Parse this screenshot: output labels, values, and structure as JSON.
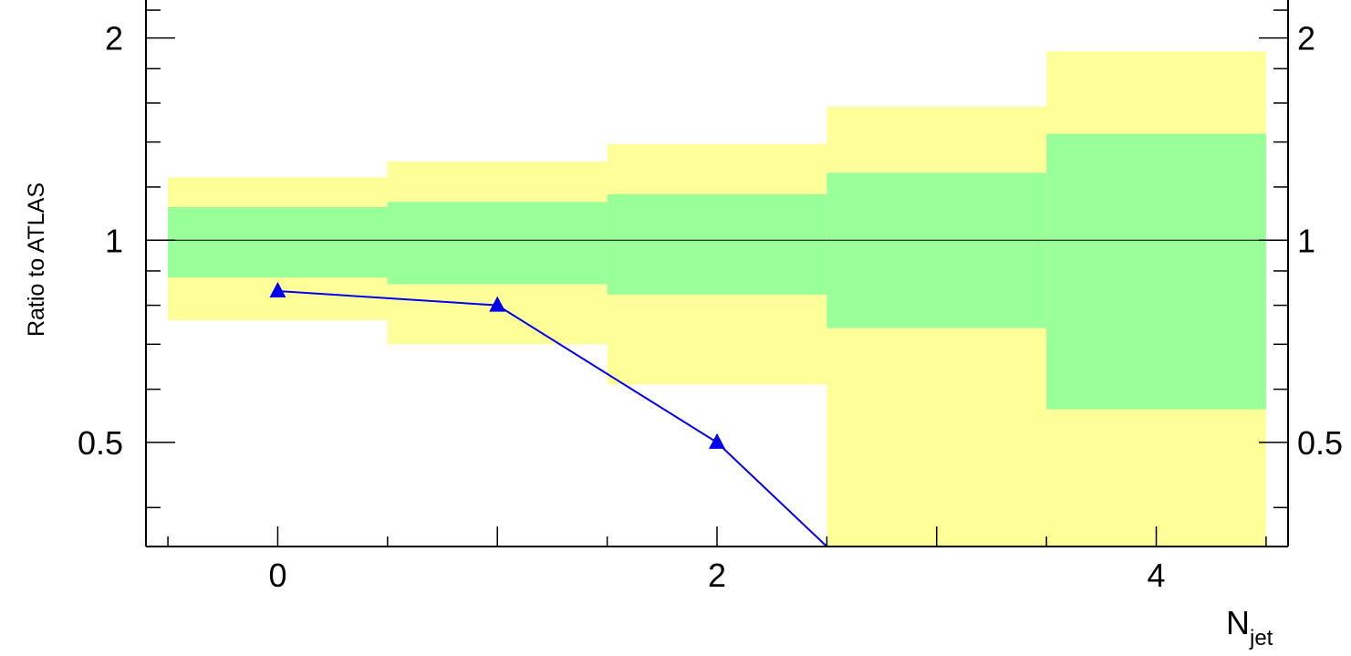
{
  "chart_data": {
    "type": "bar",
    "xlabel_main": "N",
    "xlabel_sub": "jet",
    "ylabel": "Ratio to ATLAS",
    "xlim": [
      -0.6,
      4.6
    ],
    "ylim": [
      0.35,
      2.35
    ],
    "y_scale": "log",
    "x_ticks": [
      "0",
      "2",
      "4"
    ],
    "y_ticks": [
      "0.5",
      "1",
      "2"
    ],
    "reference_line": 1,
    "bins": [
      {
        "low": -0.5,
        "high": 0.5,
        "green": [
          0.88,
          1.12
        ],
        "yellow": [
          0.76,
          1.24
        ]
      },
      {
        "low": 0.5,
        "high": 1.5,
        "green": [
          0.86,
          1.14
        ],
        "yellow": [
          0.7,
          1.31
        ]
      },
      {
        "low": 1.5,
        "high": 2.5,
        "green": [
          0.83,
          1.17
        ],
        "yellow": [
          0.61,
          1.39
        ]
      },
      {
        "low": 2.5,
        "high": 3.5,
        "green": [
          0.74,
          1.26
        ],
        "yellow": [
          0.35,
          1.58
        ]
      },
      {
        "low": 3.5,
        "high": 4.5,
        "green": [
          0.56,
          1.44
        ],
        "yellow": [
          0.35,
          1.91
        ]
      }
    ],
    "series": [
      {
        "x": [
          0,
          1,
          2,
          2.5
        ],
        "y": [
          0.84,
          0.8,
          0.5,
          0.35
        ],
        "color": "#0000ee",
        "marker": "triangle"
      }
    ],
    "colors": {
      "green": "#99ff99",
      "yellow": "#ffff99",
      "line": "#0000ee",
      "axis": "#000000"
    }
  }
}
